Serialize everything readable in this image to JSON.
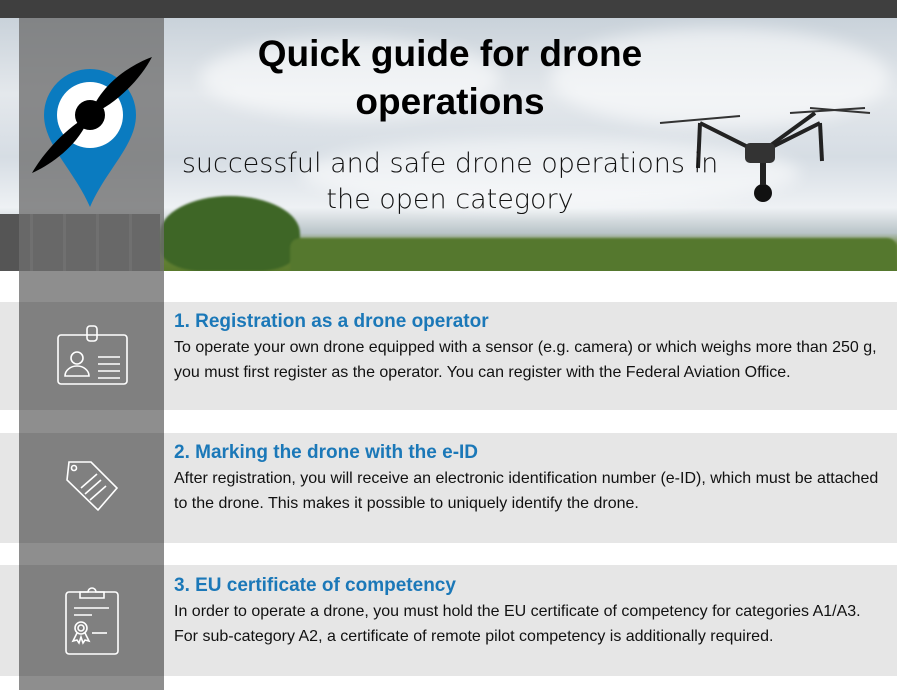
{
  "header": {
    "title": "Quick guide for drone operations",
    "subtitle": "successful and safe drone operations in the open category"
  },
  "colors": {
    "accent": "#1b78b8",
    "band": "#e6e6e6",
    "column": "#808080",
    "topbar": "#3f3f3f"
  },
  "sections": [
    {
      "heading": "1. Registration as a drone operator",
      "body": "To operate your own drone equipped with a sensor (e.g. camera) or which weighs more than 250 g, you must first register as the operator. You can register with the Federal Aviation Office.",
      "icon": "id-badge-icon"
    },
    {
      "heading": "2. Marking the drone with the e-ID",
      "body": "After registration, you will receive an electronic identification number (e-ID), which must be attached to the drone. This makes it possible to uniquely identify the drone.",
      "icon": "tag-icon"
    },
    {
      "heading": "3. EU certificate of competency",
      "body": "In order to operate a drone, you must hold the EU certificate of competency for categories A1/A3. For sub-category A2, a certificate of remote pilot competency is additionally required.",
      "icon": "certificate-clipboard-icon"
    }
  ]
}
